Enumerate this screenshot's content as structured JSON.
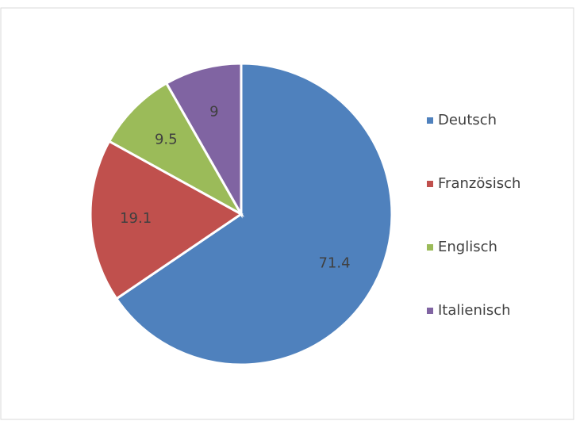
{
  "chart_data": {
    "type": "pie",
    "categories": [
      "Deutsch",
      "Französisch",
      "Englisch",
      "Italienisch"
    ],
    "values": [
      71.4,
      19.1,
      9.5,
      9
    ],
    "colors": [
      "#4f81bd",
      "#c0504d",
      "#9bbb59",
      "#8064a2"
    ],
    "legend": "right"
  }
}
